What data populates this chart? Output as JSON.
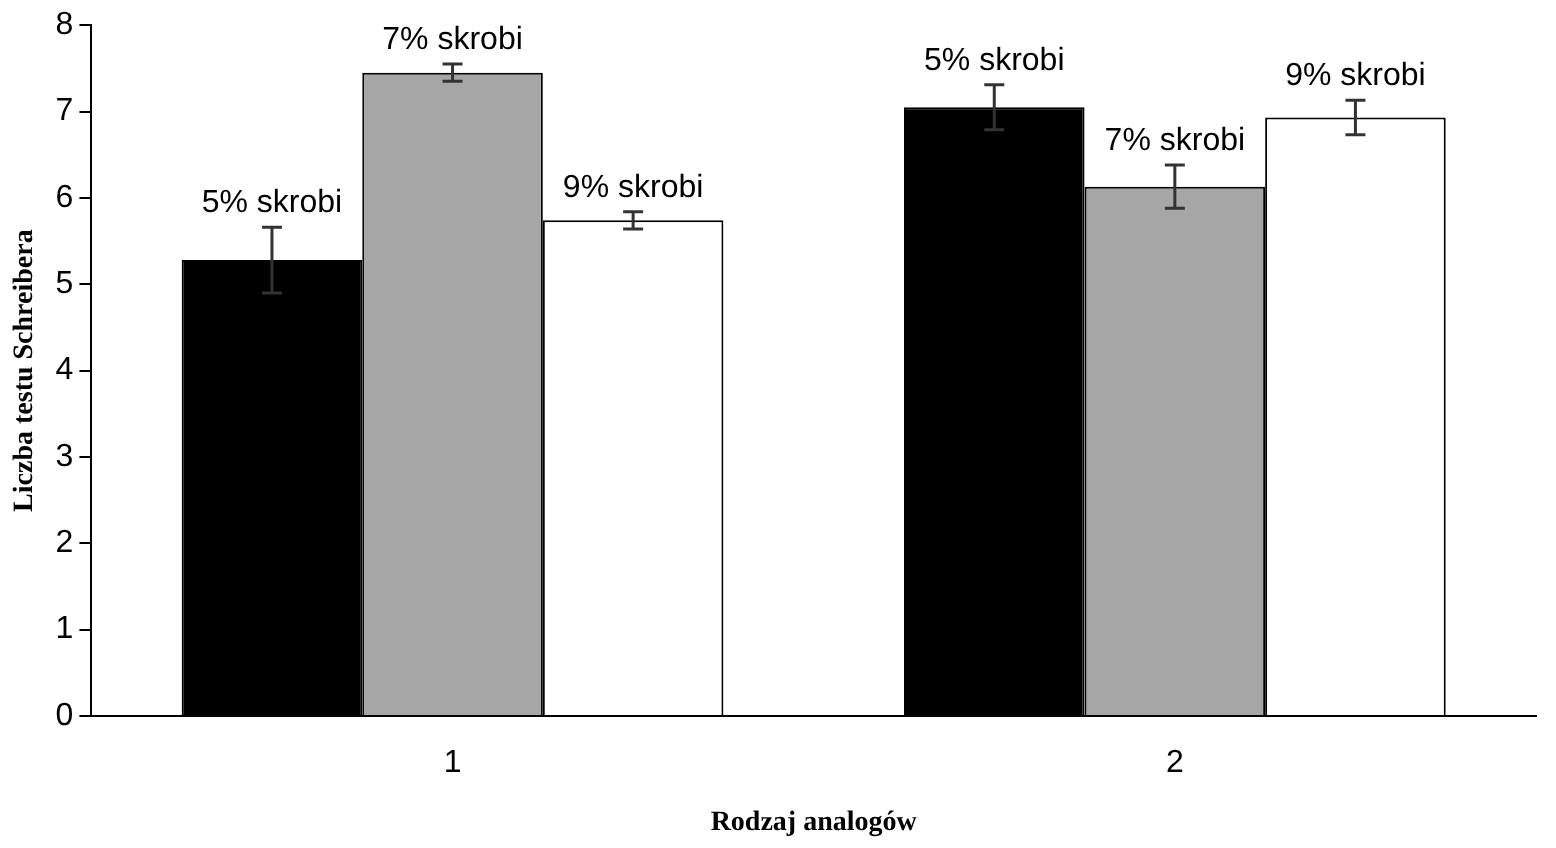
{
  "chart_data": {
    "type": "bar",
    "xlabel": "Rodzaj analogów",
    "ylabel": "Liczba testu Schreibera",
    "categories": [
      "1",
      "2"
    ],
    "series": [
      {
        "name": "5% skrobi",
        "color": "#000000",
        "values": [
          5.28,
          7.05
        ],
        "errors": [
          0.38,
          0.26
        ]
      },
      {
        "name": "7% skrobi",
        "color": "#a6a6a6",
        "values": [
          7.45,
          6.13
        ],
        "errors": [
          0.1,
          0.25
        ]
      },
      {
        "name": "9% skrobi",
        "color": "#ffffff",
        "values": [
          5.74,
          6.93
        ],
        "errors": [
          0.1,
          0.2
        ]
      }
    ],
    "ylim": [
      0,
      8
    ],
    "yticks": [
      0,
      1,
      2,
      3,
      4,
      5,
      6,
      7,
      8
    ],
    "grid": false,
    "legend": false
  }
}
